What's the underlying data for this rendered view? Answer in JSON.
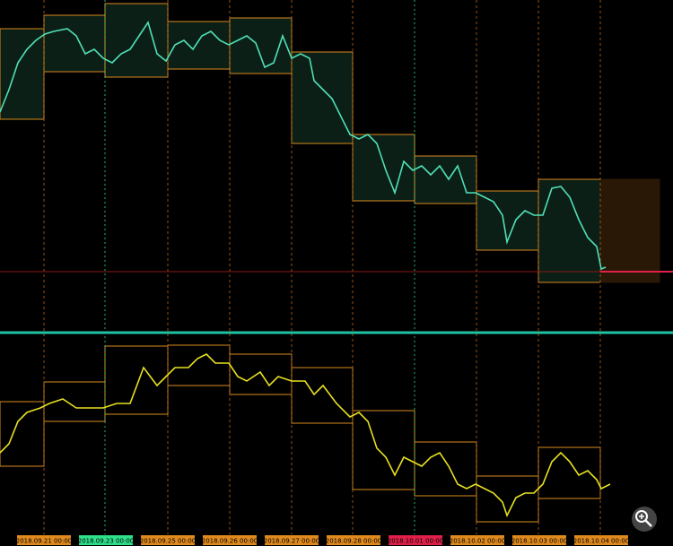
{
  "time_axis": {
    "labels": [
      {
        "text": "2018.09.21 00:00",
        "background": "#e08a1e"
      },
      {
        "text": "2018.09.23 00:00",
        "background": "#2ee08a"
      },
      {
        "text": "2018.09.25 00:00",
        "background": "#e08a1e"
      },
      {
        "text": "2018.09.26 00:00",
        "background": "#e08a1e"
      },
      {
        "text": "2018.09.27 00:00",
        "background": "#e08a1e"
      },
      {
        "text": "2018.09.28 00:00",
        "background": "#e08a1e"
      },
      {
        "text": "2018.10.01 00:00",
        "background": "#e0204a"
      },
      {
        "text": "2018.10.02 00:00",
        "background": "#e08a1e"
      },
      {
        "text": "2018.10.03 00:00",
        "background": "#e08a1e"
      },
      {
        "text": "2018.10.04 00:00",
        "background": "#e08a1e"
      }
    ]
  }
}
